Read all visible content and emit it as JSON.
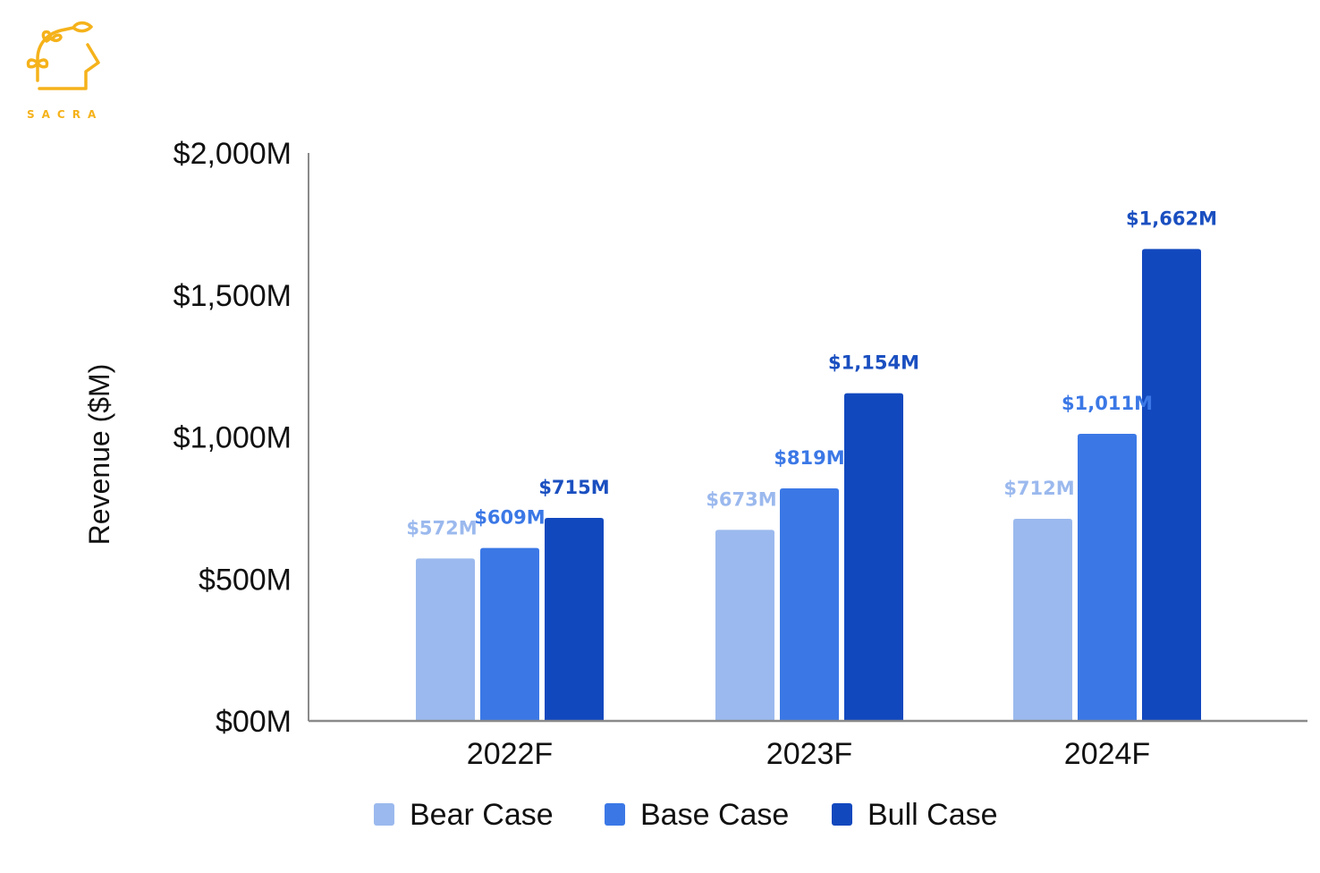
{
  "brand": {
    "name": "SACRA",
    "color": "#f5b21a"
  },
  "chart_data": {
    "type": "bar",
    "title": "",
    "xlabel": "",
    "ylabel": "Revenue ($M)",
    "ylim": [
      0,
      2000
    ],
    "yticks": [
      0,
      500,
      1000,
      1500,
      2000
    ],
    "ytick_labels": [
      "$00M",
      "$500M",
      "$1,000M",
      "$1,500M",
      "$2,000M"
    ],
    "categories": [
      "2022F",
      "2023F",
      "2024F"
    ],
    "grid": false,
    "legend_position": "bottom",
    "series": [
      {
        "name": "Bear Case",
        "color": "#9bb9ee",
        "label_color": "#9bb9ee",
        "values": [
          572,
          673,
          712
        ],
        "labels": [
          "$572M",
          "$673M",
          "$712M"
        ]
      },
      {
        "name": "Base Case",
        "color": "#3b78e6",
        "label_color": "#3b78e6",
        "values": [
          609,
          819,
          1011
        ],
        "labels": [
          "$609M",
          "$819M",
          "$1,011M"
        ]
      },
      {
        "name": "Bull Case",
        "color": "#1248be",
        "label_color": "#1a4fc0",
        "values": [
          715,
          1154,
          1662
        ],
        "labels": [
          "$715M",
          "$1,154M",
          "$1,662M"
        ]
      }
    ]
  }
}
